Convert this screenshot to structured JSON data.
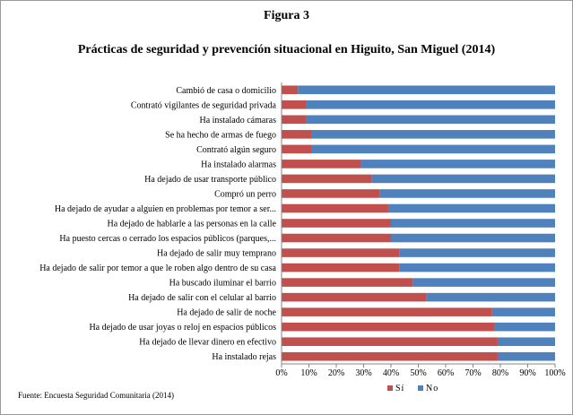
{
  "figure": {
    "label": "Figura 3",
    "title": "Prácticas de seguridad y prevención situacional en Higuito, San Miguel (2014)",
    "source": "Fuente: Encuesta Seguridad Comunitaria (2014)"
  },
  "chart_data": {
    "type": "bar",
    "orientation": "horizontal",
    "stacked": "percent",
    "categories": [
      "Cambió de casa o domicilio",
      "Contrató vigilantes de seguridad privada",
      "Ha instalado cámaras",
      "Se ha hecho de armas de fuego",
      "Contrató algún seguro",
      "Ha instalado alarmas",
      "Ha dejado de usar transporte público",
      "Compró un perro",
      "Ha dejado de ayudar a alguien en problemas por temor a ser...",
      "Ha dejado de hablarle a las personas en la calle",
      "Ha puesto cercas o cerrado los espacios públicos (parques,...",
      "Ha dejado de salir muy temprano",
      "Ha dejado de salir por temor a que le roben algo dentro de su casa",
      "Ha buscado iluminar el barrio",
      "Ha dejado de salir con el celular al barrio",
      "Ha dejado de salir de noche",
      "Ha dejado de usar joyas o reloj en espacios públicos",
      "Ha dejado de llevar dinero en efectivo",
      "Ha instalado rejas"
    ],
    "series": [
      {
        "name": "Sí",
        "color": "#c0504d",
        "values": [
          6,
          9,
          9,
          11,
          11,
          29,
          33,
          36,
          39,
          40,
          40,
          43,
          43,
          48,
          53,
          77,
          78,
          79,
          79
        ]
      },
      {
        "name": "No",
        "color": "#4f81bd",
        "values": [
          94,
          91,
          91,
          89,
          89,
          71,
          67,
          64,
          61,
          60,
          60,
          57,
          57,
          52,
          47,
          23,
          22,
          21,
          21
        ]
      }
    ],
    "xlim": [
      0,
      100
    ],
    "x_ticks": [
      "0%",
      "10%",
      "20%",
      "30%",
      "40%",
      "50%",
      "60%",
      "70%",
      "80%",
      "90%",
      "100%"
    ],
    "grid": false,
    "legend": "bottom"
  }
}
